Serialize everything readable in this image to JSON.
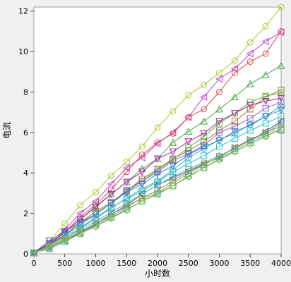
{
  "chart_data": {
    "type": "line",
    "xlabel": "小时数",
    "ylabel": "电流",
    "xlim": [
      0,
      4000
    ],
    "ylim": [
      0,
      12.2
    ],
    "x_ticks": [
      0,
      500,
      1000,
      1500,
      2000,
      2500,
      3000,
      3500,
      4000
    ],
    "y_ticks": [
      0,
      2,
      4,
      6,
      8,
      10,
      12
    ],
    "grid": false,
    "x": [
      0,
      250,
      500,
      750,
      1000,
      1250,
      1500,
      1750,
      2000,
      2250,
      2500,
      2750,
      3000,
      3250,
      3500,
      3750,
      4000
    ],
    "series": [
      {
        "color": "#a8c830",
        "marker": "circle",
        "values": [
          0.05,
          0.65,
          1.5,
          2.4,
          3.05,
          3.85,
          4.55,
          5.3,
          6.25,
          7.05,
          7.85,
          8.35,
          8.95,
          9.55,
          10.45,
          11.25,
          12.2
        ]
      },
      {
        "color": "#c040d0",
        "marker": "triangle-left",
        "values": [
          0.05,
          0.55,
          1.2,
          2.0,
          2.6,
          3.45,
          4.25,
          4.75,
          5.45,
          6.0,
          6.75,
          7.75,
          8.65,
          9.15,
          9.9,
          10.5,
          10.95
        ]
      },
      {
        "color": "#e04848",
        "marker": "circle",
        "values": [
          0.05,
          0.5,
          1.1,
          1.8,
          2.45,
          3.15,
          4.05,
          4.9,
          5.5,
          5.95,
          6.75,
          7.15,
          8.0,
          8.95,
          9.5,
          9.9,
          11.0
        ]
      },
      {
        "color": "#40a840",
        "marker": "triangle-up",
        "values": [
          0.05,
          0.45,
          1.05,
          1.7,
          2.35,
          2.95,
          3.55,
          4.2,
          4.7,
          5.5,
          6.05,
          6.55,
          7.15,
          7.75,
          8.4,
          8.85,
          9.3
        ]
      },
      {
        "color": "#a07828",
        "marker": "square",
        "values": [
          0.05,
          0.45,
          0.95,
          1.55,
          2.1,
          2.55,
          3.1,
          3.7,
          4.2,
          4.7,
          5.1,
          5.55,
          6.1,
          6.55,
          7.15,
          7.75,
          8.1
        ]
      },
      {
        "color": "#50b830",
        "marker": "square",
        "values": [
          0.05,
          0.4,
          0.95,
          1.45,
          2.0,
          2.5,
          3.05,
          3.6,
          4.15,
          4.65,
          5.25,
          5.8,
          6.45,
          6.95,
          7.5,
          7.8,
          7.95
        ]
      },
      {
        "color": "#b020b0",
        "marker": "triangle-down",
        "values": [
          0.05,
          0.5,
          1.05,
          1.7,
          2.3,
          2.95,
          3.55,
          4.05,
          4.7,
          5.05,
          5.55,
          5.95,
          6.55,
          6.95,
          7.35,
          7.55,
          7.7
        ]
      },
      {
        "color": "#9060c8",
        "marker": "square",
        "values": [
          0.05,
          0.4,
          0.9,
          1.45,
          1.95,
          2.5,
          3.15,
          3.6,
          4.05,
          4.6,
          4.95,
          5.35,
          6.0,
          6.3,
          6.7,
          7.2,
          7.5
        ]
      },
      {
        "color": "#2aa8c8",
        "marker": "diamond",
        "values": [
          0.05,
          0.35,
          0.75,
          1.25,
          1.75,
          2.25,
          2.75,
          3.2,
          3.6,
          4.15,
          4.75,
          5.2,
          5.65,
          5.95,
          6.4,
          6.8,
          7.3
        ]
      },
      {
        "color": "#3878d0",
        "marker": "triangle-down",
        "values": [
          0.05,
          0.65,
          1.1,
          1.55,
          1.95,
          2.5,
          3.05,
          3.45,
          3.95,
          4.35,
          4.9,
          5.3,
          5.6,
          6.05,
          6.35,
          6.8,
          7.1
        ]
      },
      {
        "color": "#2cc0c8",
        "marker": "square",
        "values": [
          0.05,
          0.4,
          0.85,
          1.3,
          1.8,
          2.3,
          2.7,
          3.1,
          3.55,
          4.05,
          4.45,
          4.85,
          5.3,
          5.7,
          6.1,
          6.45,
          6.8
        ]
      },
      {
        "color": "#505070",
        "marker": "triangle-left",
        "values": [
          0.05,
          0.3,
          0.65,
          1.05,
          1.45,
          1.95,
          2.4,
          2.95,
          3.4,
          3.75,
          4.1,
          4.45,
          4.75,
          5.25,
          5.6,
          6.05,
          6.55
        ]
      },
      {
        "color": "#48b8a8",
        "marker": "circle",
        "values": [
          0.05,
          0.35,
          0.75,
          1.2,
          1.6,
          2.05,
          2.5,
          2.95,
          3.4,
          3.8,
          4.2,
          4.5,
          4.85,
          5.2,
          5.6,
          5.95,
          6.45
        ]
      },
      {
        "color": "#7088a8",
        "marker": "triangle-right",
        "values": [
          0.05,
          0.3,
          0.7,
          1.1,
          1.5,
          1.95,
          2.35,
          2.75,
          3.15,
          3.6,
          4.05,
          4.4,
          4.8,
          5.25,
          5.65,
          6.0,
          6.3
        ]
      },
      {
        "color": "#c0a020",
        "marker": "square",
        "values": [
          0.05,
          0.35,
          0.7,
          1.1,
          1.5,
          1.85,
          2.3,
          2.75,
          3.0,
          3.5,
          3.95,
          4.4,
          4.8,
          5.2,
          5.6,
          5.95,
          6.15
        ]
      },
      {
        "color": "#38a0d8",
        "marker": "square",
        "values": [
          0.05,
          0.25,
          0.6,
          1.0,
          1.4,
          1.8,
          2.2,
          2.6,
          2.95,
          3.35,
          3.85,
          4.25,
          4.7,
          5.1,
          5.5,
          5.85,
          6.1
        ]
      },
      {
        "color": "#8cc830",
        "marker": "diamond",
        "values": [
          0.05,
          0.3,
          0.65,
          1.0,
          1.35,
          1.75,
          2.15,
          2.6,
          3.0,
          3.35,
          3.8,
          4.25,
          4.65,
          5.05,
          5.4,
          5.8,
          6.15
        ]
      }
    ]
  }
}
